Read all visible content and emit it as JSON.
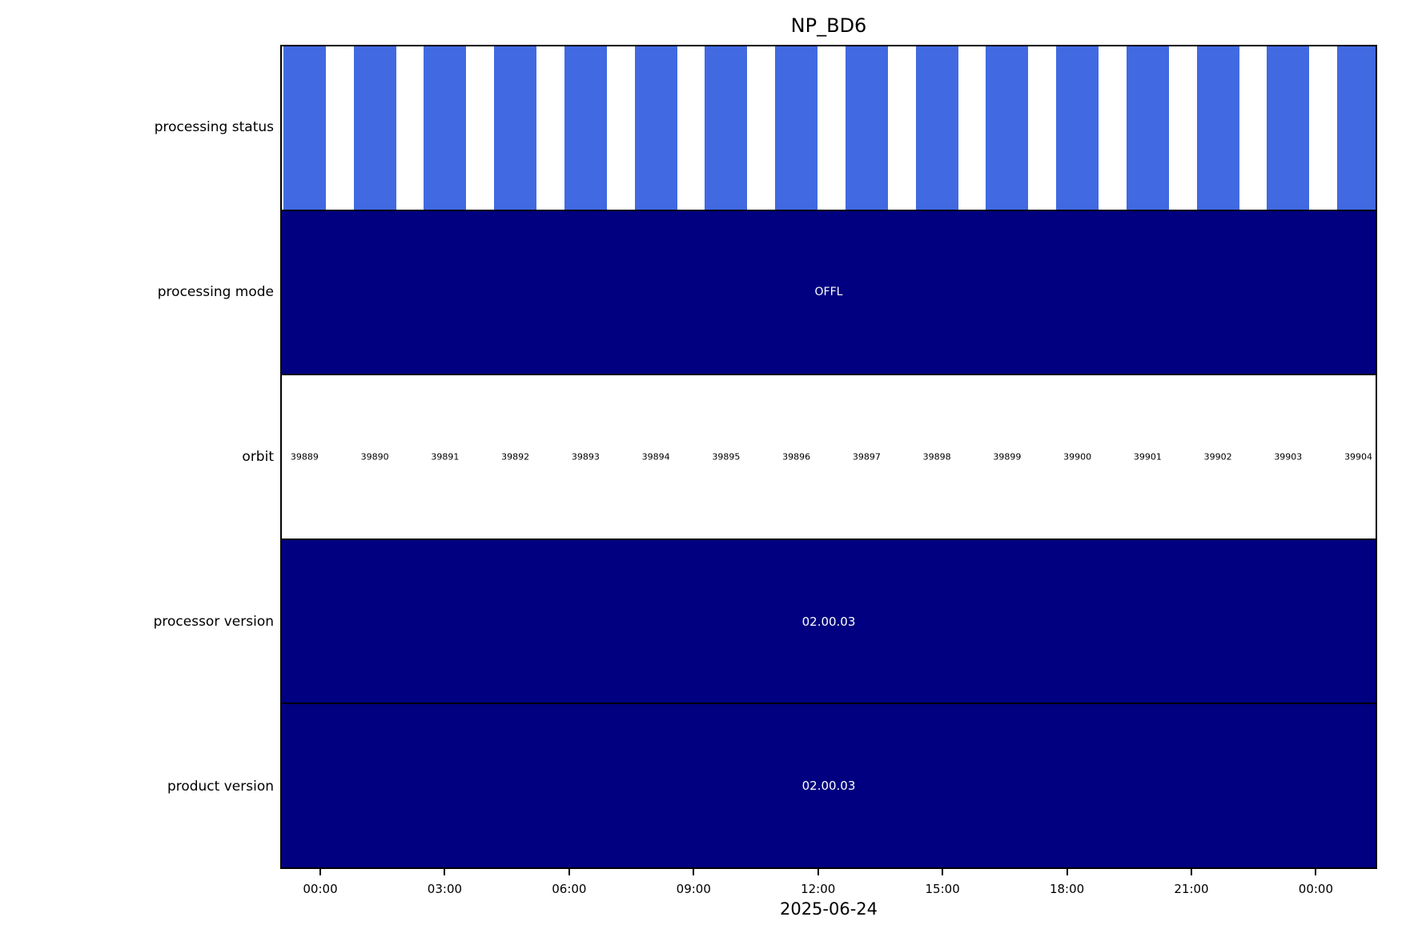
{
  "title": "NP_BD6",
  "rows": [
    {
      "label": "processing status",
      "type": "bars"
    },
    {
      "label": "processing mode",
      "type": "fill",
      "value": "OFFL"
    },
    {
      "label": "orbit",
      "type": "labels"
    },
    {
      "label": "processor version",
      "type": "fill",
      "value": "02.00.03"
    },
    {
      "label": "product version",
      "type": "fill",
      "value": "02.00.03"
    }
  ],
  "x_axis": {
    "tick_labels": [
      "00:00",
      "03:00",
      "06:00",
      "09:00",
      "12:00",
      "15:00",
      "18:00",
      "21:00",
      "00:00"
    ],
    "date_label": "2025-06-24"
  },
  "colors": {
    "bar_blue": "#4169E1",
    "row_navy": "#000080",
    "frame": "#000000",
    "text_on_navy": "#FFFFFF"
  },
  "chart_data": {
    "type": "bar",
    "subtype": "status-timeline-gantt",
    "title": "NP_BD6",
    "date": "2025-06-24",
    "x_tick_labels": [
      "00:00",
      "03:00",
      "06:00",
      "09:00",
      "12:00",
      "15:00",
      "18:00",
      "21:00",
      "00:00"
    ],
    "x_tick_interval_hours": 3,
    "legend": "none",
    "grid": "off",
    "rows": [
      {
        "label": "processing status",
        "style": "one blue bar per orbit, white gaps",
        "bar_color": "#4169E1",
        "n_bars": 16,
        "bar_duration_fraction_of_orbit": 0.6
      },
      {
        "label": "processing mode",
        "style": "single full-width navy block",
        "fill_color": "#000080",
        "value": "OFFL"
      },
      {
        "label": "orbit",
        "style": "white block with one number per orbit",
        "values": [
          "39889",
          "39890",
          "39891",
          "39892",
          "39893",
          "39894",
          "39895",
          "39896",
          "39897",
          "39898",
          "39899",
          "39900",
          "39901",
          "39902",
          "39903",
          "39904"
        ]
      },
      {
        "label": "processor version",
        "style": "single full-width navy block",
        "fill_color": "#000080",
        "value": "02.00.03"
      },
      {
        "label": "product version",
        "style": "single full-width navy block",
        "fill_color": "#000080",
        "value": "02.00.03"
      }
    ]
  }
}
